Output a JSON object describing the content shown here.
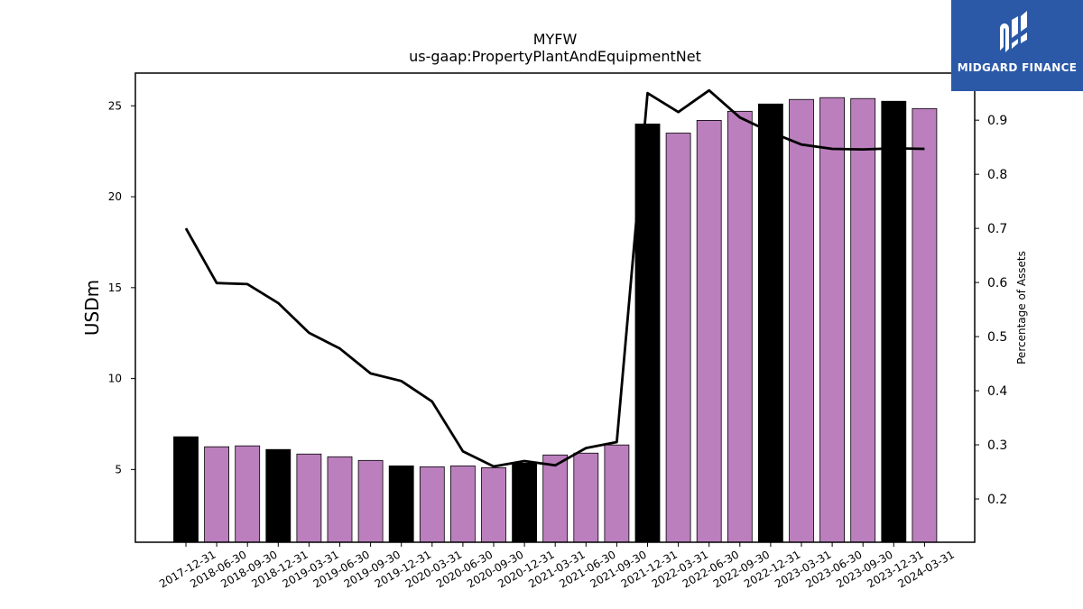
{
  "chart_data": {
    "type": "bar",
    "title": "MYFW",
    "subtitle": "us-gaap:PropertyPlantAndEquipmentNet",
    "ylabel": "USDm",
    "y2label": "Percentage of Assets",
    "ylim": [
      1.0,
      26.8
    ],
    "y2lim": [
      0.12,
      0.987
    ],
    "yticks": [
      5,
      10,
      15,
      20,
      25
    ],
    "y2ticks": [
      0.2,
      0.3,
      0.4,
      0.5,
      0.6,
      0.7,
      0.8,
      0.9
    ],
    "categories": [
      "2017-12-31",
      "2018-06-30",
      "2018-09-30",
      "2018-12-31",
      "2019-03-31",
      "2019-06-30",
      "2019-09-30",
      "2019-12-31",
      "2020-03-31",
      "2020-06-30",
      "2020-09-30",
      "2020-12-31",
      "2021-03-31",
      "2021-06-30",
      "2021-09-30",
      "2021-12-31",
      "2022-03-31",
      "2022-06-30",
      "2022-09-30",
      "2022-12-31",
      "2023-03-31",
      "2023-06-30",
      "2023-09-30",
      "2023-12-31",
      "2024-03-31"
    ],
    "series": [
      {
        "type": "bar",
        "values": [
          6.8,
          6.25,
          6.3,
          6.1,
          5.85,
          5.7,
          5.5,
          5.2,
          5.15,
          5.2,
          5.1,
          5.35,
          5.8,
          5.9,
          6.35,
          24.0,
          23.5,
          24.2,
          24.7,
          25.1,
          25.35,
          25.45,
          25.4,
          25.25,
          24.85
        ]
      },
      {
        "type": "line",
        "axis": "right",
        "color": "#000000",
        "values": [
          0.7,
          0.599,
          0.597,
          0.562,
          0.507,
          0.478,
          0.432,
          0.418,
          0.38,
          0.288,
          0.26,
          0.27,
          0.262,
          0.294,
          0.305,
          0.95,
          0.915,
          0.955,
          0.905,
          0.878,
          0.855,
          0.847,
          0.846,
          0.848,
          0.847
        ]
      }
    ],
    "bar_colors": {
      "annual": "#000000",
      "quarterly": "#bb7fbd"
    },
    "highlight_indices": [
      0,
      3,
      7,
      11,
      15,
      19,
      23
    ],
    "grid": false,
    "legend": "none"
  },
  "logo": {
    "text": "MIDGARD FINANCE",
    "background": "#2b59a8"
  }
}
